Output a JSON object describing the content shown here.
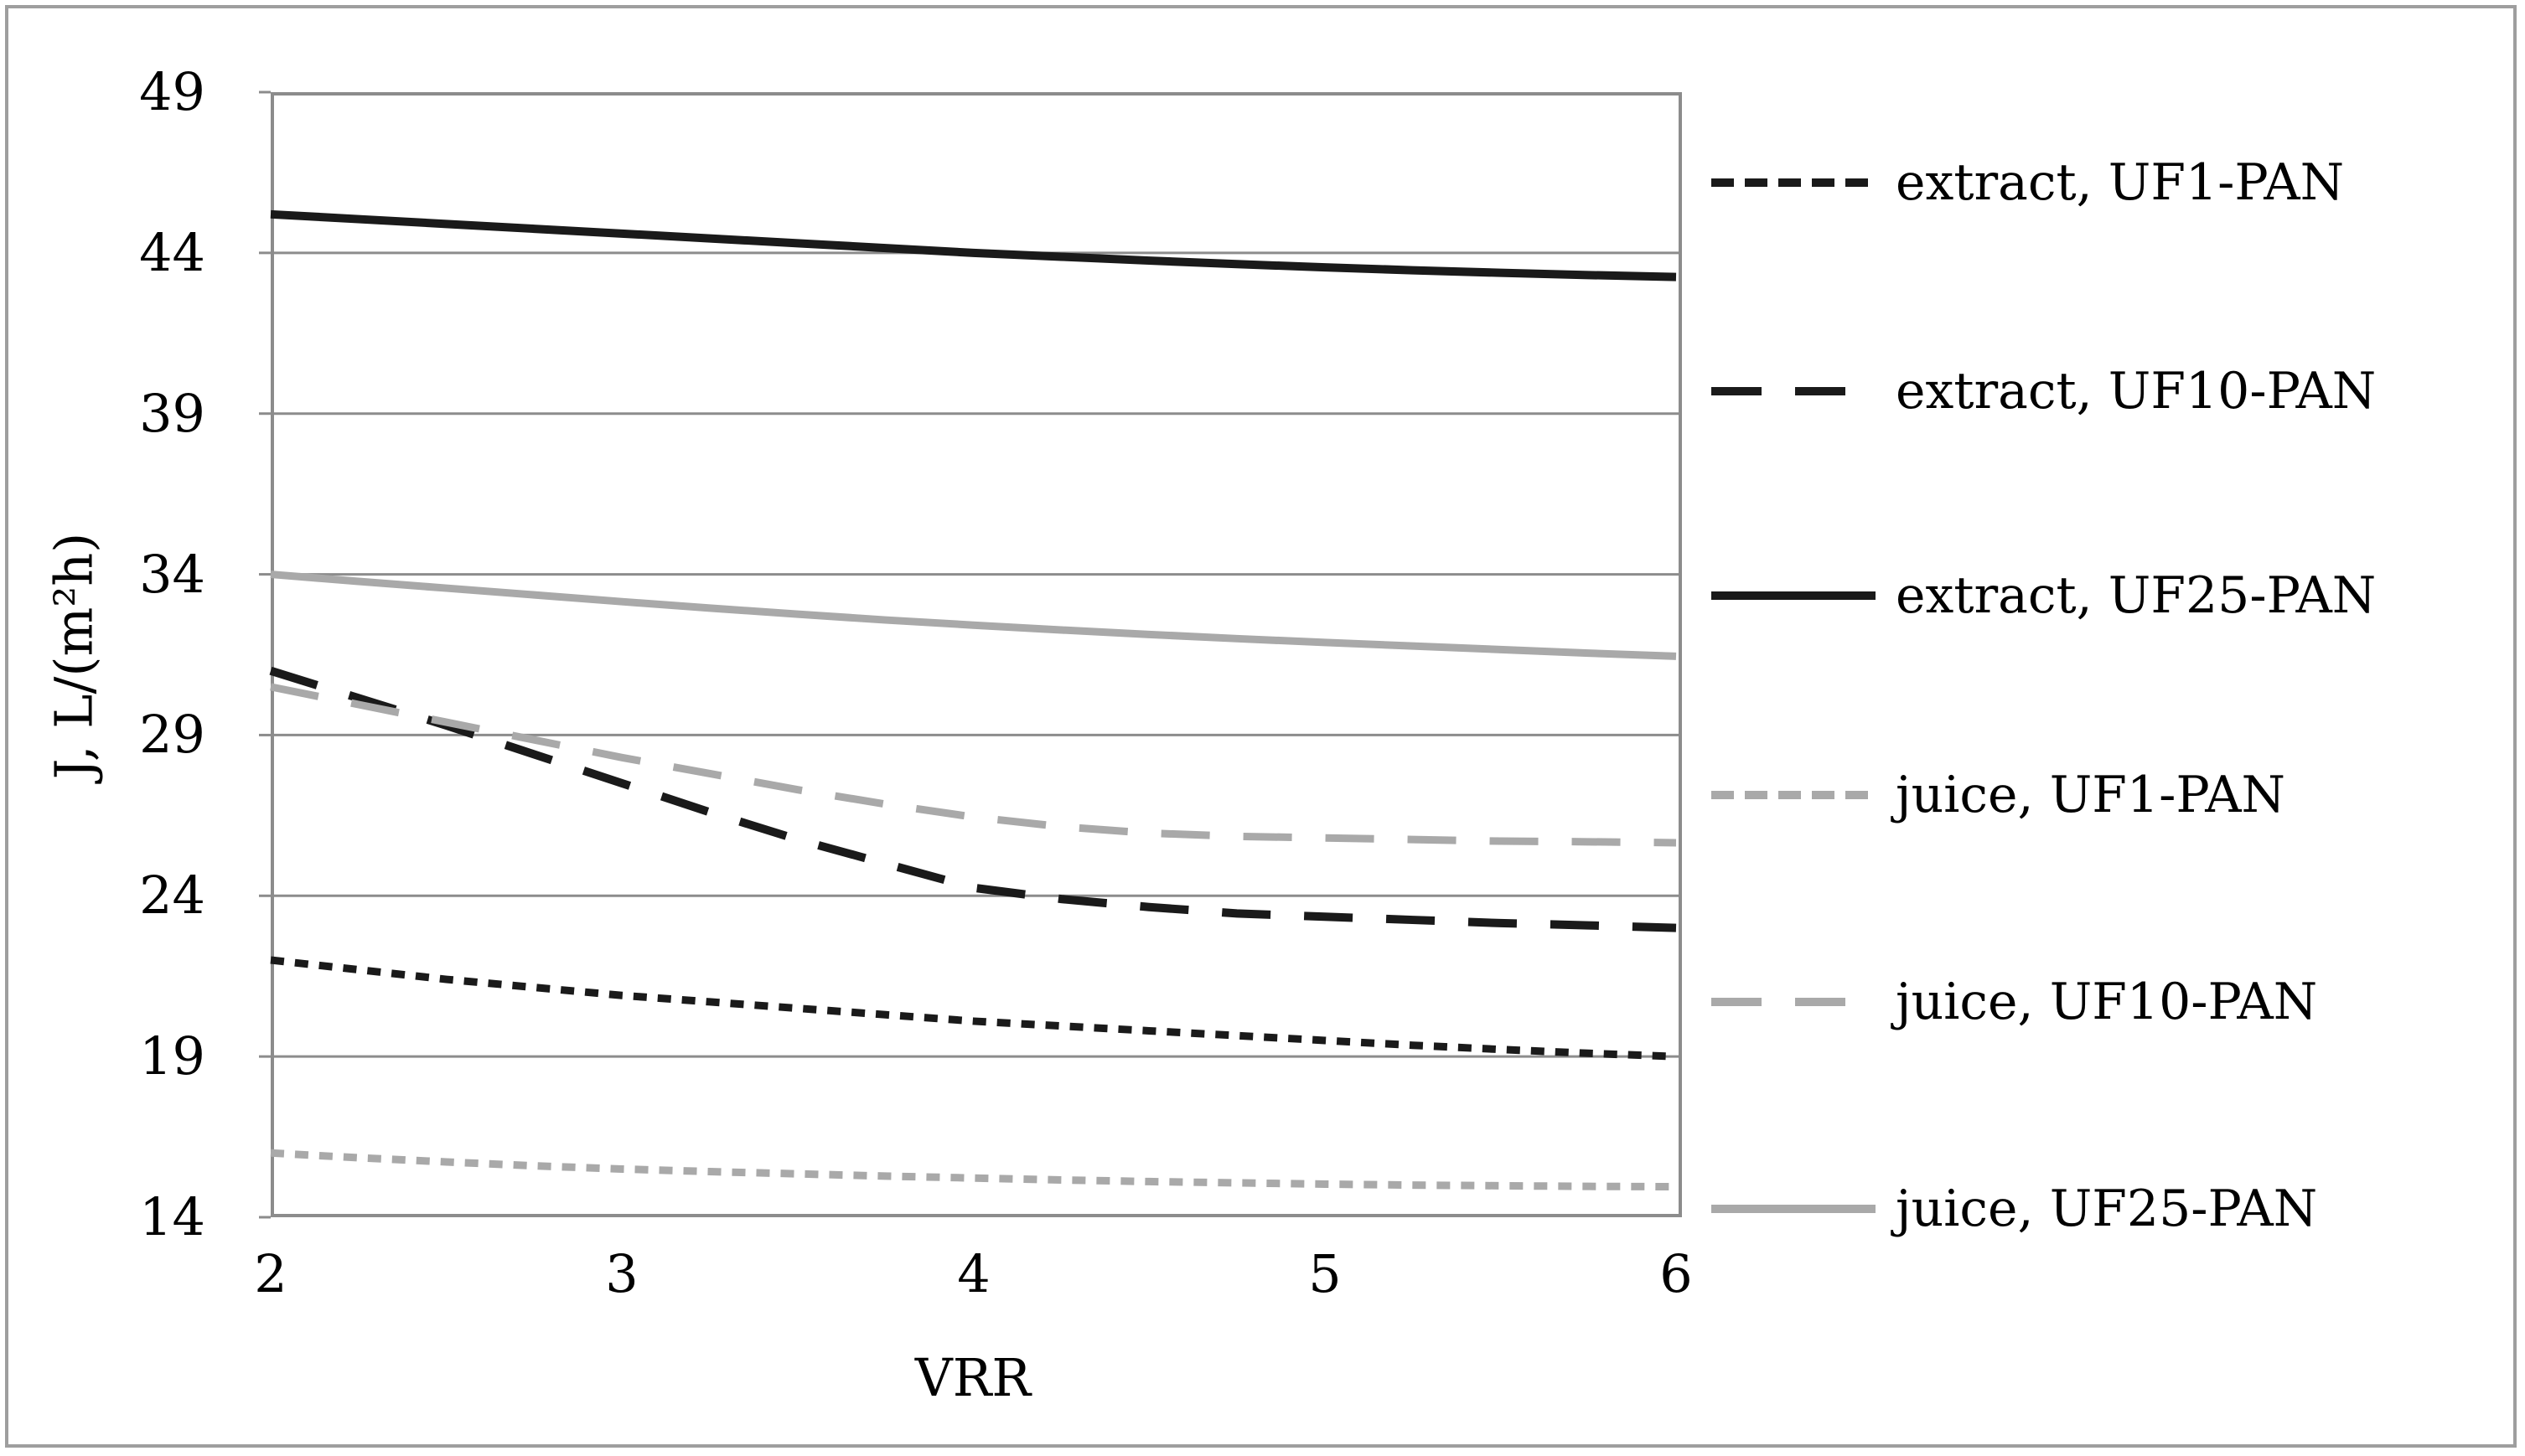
{
  "figure": {
    "y_axis": {
      "title": "J, L/(m²h)",
      "ticks": [
        "49",
        "44",
        "39",
        "34",
        "29",
        "24",
        "19",
        "14"
      ],
      "min": 14,
      "max": 49,
      "step": 5
    },
    "x_axis": {
      "title": "VRR",
      "ticks": [
        "2",
        "3",
        "4",
        "5",
        "6"
      ],
      "min": 2,
      "max": 6,
      "step": 1
    },
    "legend": [
      {
        "label": "extract, UF1-PAN",
        "color": "#1a1a1a",
        "style": "dot"
      },
      {
        "label": "extract, UF10-PAN",
        "color": "#1a1a1a",
        "style": "dash"
      },
      {
        "label": "extract, UF25-PAN",
        "color": "#1a1a1a",
        "style": "solid"
      },
      {
        "label": "juice, UF1-PAN",
        "color": "#a9a9a9",
        "style": "dot"
      },
      {
        "label": "juice, UF10-PAN",
        "color": "#a9a9a9",
        "style": "dash"
      },
      {
        "label": "juice, UF25-PAN",
        "color": "#a9a9a9",
        "style": "solid"
      }
    ],
    "colors": {
      "extract_series": "#1a1a1a",
      "juice_series": "#a9a9a9",
      "gridline": "#8c8c8c",
      "plot_border": "#8c8c8c",
      "figure_border": "#9e9e9e"
    }
  },
  "chart_data": {
    "type": "line",
    "title": "",
    "xlabel": "VRR",
    "ylabel": "J, L/(m²h)",
    "xlim": [
      2,
      6
    ],
    "ylim": [
      14,
      49
    ],
    "x_ticks": [
      2,
      3,
      4,
      5,
      6
    ],
    "y_ticks": [
      14,
      19,
      24,
      29,
      34,
      39,
      44,
      49
    ],
    "grid": "horizontal",
    "legend_position": "right",
    "x": [
      2,
      2.25,
      2.5,
      2.75,
      3,
      3.25,
      3.5,
      3.75,
      4,
      4.25,
      4.5,
      4.75,
      5,
      5.25,
      5.5,
      5.75,
      6
    ],
    "series": [
      {
        "name": "extract, UF1-PAN",
        "color": "#1a1a1a",
        "style": "dot",
        "width": 9,
        "values": [
          22.0,
          21.7,
          21.4,
          21.15,
          20.9,
          20.7,
          20.5,
          20.3,
          20.1,
          19.95,
          19.8,
          19.65,
          19.5,
          19.35,
          19.22,
          19.1,
          19.0
        ]
      },
      {
        "name": "extract, UF10-PAN",
        "color": "#1a1a1a",
        "style": "dash",
        "width": 10,
        "values": [
          31.0,
          30.15,
          29.3,
          28.4,
          27.5,
          26.6,
          25.75,
          25.0,
          24.25,
          23.9,
          23.65,
          23.45,
          23.35,
          23.25,
          23.15,
          23.08,
          23.0
        ]
      },
      {
        "name": "extract, UF25-PAN",
        "color": "#1a1a1a",
        "style": "solid",
        "width": 10,
        "values": [
          45.2,
          45.05,
          44.9,
          44.75,
          44.6,
          44.45,
          44.3,
          44.15,
          44.0,
          43.88,
          43.76,
          43.65,
          43.55,
          43.46,
          43.38,
          43.31,
          43.25
        ]
      },
      {
        "name": "juice, UF1-PAN",
        "color": "#a9a9a9",
        "style": "dot",
        "width": 9,
        "values": [
          16.0,
          15.85,
          15.72,
          15.6,
          15.5,
          15.42,
          15.35,
          15.28,
          15.22,
          15.16,
          15.11,
          15.07,
          15.03,
          15.0,
          14.98,
          14.96,
          14.95
        ]
      },
      {
        "name": "juice, UF10-PAN",
        "color": "#a9a9a9",
        "style": "dash",
        "width": 9,
        "values": [
          30.5,
          29.95,
          29.4,
          28.85,
          28.3,
          27.8,
          27.3,
          26.85,
          26.45,
          26.15,
          25.95,
          25.85,
          25.8,
          25.75,
          25.7,
          25.68,
          25.65
        ]
      },
      {
        "name": "juice, UF25-PAN",
        "color": "#a9a9a9",
        "style": "solid",
        "width": 9,
        "values": [
          34.0,
          33.78,
          33.57,
          33.36,
          33.15,
          32.95,
          32.76,
          32.58,
          32.42,
          32.27,
          32.13,
          32.0,
          31.88,
          31.77,
          31.66,
          31.55,
          31.45
        ]
      }
    ]
  }
}
